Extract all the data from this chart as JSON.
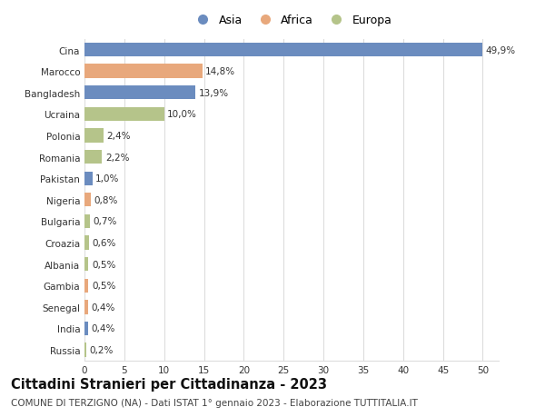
{
  "categories": [
    "Russia",
    "India",
    "Senegal",
    "Gambia",
    "Albania",
    "Croazia",
    "Bulgaria",
    "Nigeria",
    "Pakistan",
    "Romania",
    "Polonia",
    "Ucraina",
    "Bangladesh",
    "Marocco",
    "Cina"
  ],
  "values": [
    0.2,
    0.4,
    0.4,
    0.5,
    0.5,
    0.6,
    0.7,
    0.8,
    1.0,
    2.2,
    2.4,
    10.0,
    13.9,
    14.8,
    49.9
  ],
  "labels": [
    "0,2%",
    "0,4%",
    "0,4%",
    "0,5%",
    "0,5%",
    "0,6%",
    "0,7%",
    "0,8%",
    "1,0%",
    "2,2%",
    "2,4%",
    "10,0%",
    "13,9%",
    "14,8%",
    "49,9%"
  ],
  "colors": [
    "#b5c48a",
    "#6b8cbf",
    "#e8a87c",
    "#e8a87c",
    "#b5c48a",
    "#b5c48a",
    "#b5c48a",
    "#e8a87c",
    "#6b8cbf",
    "#b5c48a",
    "#b5c48a",
    "#b5c48a",
    "#6b8cbf",
    "#e8a87c",
    "#6b8cbf"
  ],
  "continents": [
    "Europa",
    "Asia",
    "Africa",
    "Africa",
    "Europa",
    "Europa",
    "Europa",
    "Africa",
    "Asia",
    "Europa",
    "Europa",
    "Europa",
    "Asia",
    "Africa",
    "Asia"
  ],
  "legend_labels": [
    "Asia",
    "Africa",
    "Europa"
  ],
  "legend_colors": [
    "#6b8cbf",
    "#e8a87c",
    "#b5c48a"
  ],
  "title": "Cittadini Stranieri per Cittadinanza - 2023",
  "subtitle": "COMUNE DI TERZIGNO (NA) - Dati ISTAT 1° gennaio 2023 - Elaborazione TUTTITALIA.IT",
  "xlim": [
    0,
    52
  ],
  "xticks": [
    0,
    5,
    10,
    15,
    20,
    25,
    30,
    35,
    40,
    45,
    50
  ],
  "bar_height": 0.65,
  "background_color": "#ffffff",
  "grid_color": "#dddddd",
  "title_fontsize": 10.5,
  "subtitle_fontsize": 7.5,
  "label_fontsize": 7.5,
  "tick_fontsize": 7.5,
  "legend_fontsize": 9
}
